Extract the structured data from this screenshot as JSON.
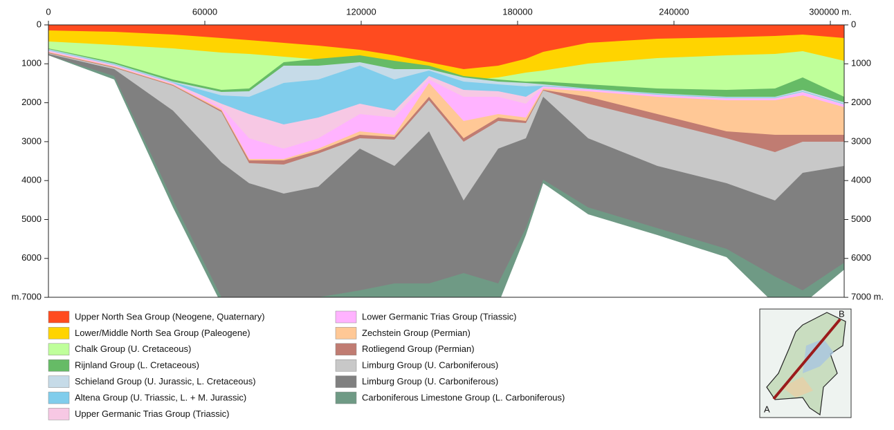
{
  "x_axis": {
    "ticks": [
      "0",
      "60000",
      "120000",
      "180000",
      "240000",
      "300000 m."
    ]
  },
  "y_axis_left": {
    "ticks": [
      "0",
      "1000",
      "2000",
      "3000",
      "4000",
      "5000",
      "6000",
      "m.7000"
    ]
  },
  "y_axis_right": {
    "ticks": [
      "0",
      "1000",
      "2000",
      "3000",
      "4000",
      "5000",
      "6000",
      "7000 m."
    ]
  },
  "legend": [
    {
      "label": "Upper North Sea Group (Neogene, Quaternary)",
      "color": "#ff4b1f"
    },
    {
      "label": "Lower/Middle North Sea Group (Paleogene)",
      "color": "#ffd400"
    },
    {
      "label": "Chalk Group (U. Cretaceous)",
      "color": "#bfff9a"
    },
    {
      "label": "Rijnland Group (L. Cretaceous)",
      "color": "#66bb66"
    },
    {
      "label": "Schieland Group (U. Jurassic, L. Cretaceous)",
      "color": "#c6dbe8"
    },
    {
      "label": "Altena Group (U. Triassic, L. + M. Jurassic)",
      "color": "#80cdec"
    },
    {
      "label": "Upper Germanic Trias Group (Triassic)",
      "color": "#f7c8e4"
    },
    {
      "label": "Lower Germanic Trias Group (Triassic)",
      "color": "#ffb3ff"
    },
    {
      "label": "Zechstein Group (Permian)",
      "color": "#ffc896"
    },
    {
      "label": "Rotliegend Group (Permian)",
      "color": "#c07c72"
    },
    {
      "label": "Limburg Group (U. Carboniferous)",
      "color": "#c8c8c8"
    },
    {
      "label": "Limburg Group (U. Carboniferous)",
      "color": "#808080"
    },
    {
      "label": "Carboniferous Limestone Group (L. Carboniferous)",
      "color": "#6f9a85"
    }
  ],
  "map": {
    "start_label": "A",
    "end_label": "B"
  }
}
